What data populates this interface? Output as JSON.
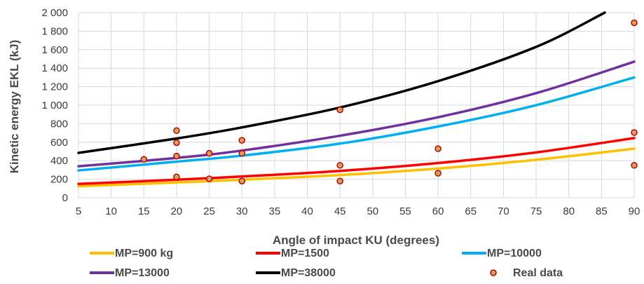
{
  "chart_data": {
    "type": "line",
    "xlabel": "Angle of impact KU (degrees)",
    "ylabel": "Kinetic energy EKL (kJ)",
    "xlim": [
      5,
      90
    ],
    "ylim": [
      0,
      2000
    ],
    "x_ticks": [
      "5",
      "10",
      "15",
      "20",
      "25",
      "30",
      "35",
      "40",
      "45",
      "50",
      "55",
      "60",
      "65",
      "70",
      "75",
      "80",
      "85",
      "90"
    ],
    "y_ticks": [
      "0",
      "200",
      "400",
      "600",
      "800",
      "1 000",
      "1 200",
      "1 400",
      "1 600",
      "1 800",
      "2 000"
    ],
    "grid": true,
    "legend_position": "bottom",
    "series": [
      {
        "name": "MP=900 kg",
        "color": "#FFC000",
        "x": [
          5,
          20,
          30,
          45,
          60,
          75,
          90
        ],
        "y": [
          125,
          165,
          195,
          245,
          315,
          410,
          530
        ]
      },
      {
        "name": "MP=1500",
        "color": "#FF0000",
        "x": [
          5,
          20,
          30,
          45,
          60,
          75,
          90
        ],
        "y": [
          150,
          195,
          230,
          290,
          375,
          490,
          645
        ]
      },
      {
        "name": "MP=10000",
        "color": "#00B0F0",
        "x": [
          5,
          20,
          30,
          45,
          60,
          75,
          90
        ],
        "y": [
          295,
          390,
          455,
          585,
          770,
          1000,
          1300
        ]
      },
      {
        "name": "MP=13000",
        "color": "#7030A0",
        "x": [
          5,
          20,
          30,
          45,
          60,
          75,
          90
        ],
        "y": [
          340,
          430,
          510,
          670,
          870,
          1130,
          1470
        ]
      },
      {
        "name": "MP=38000",
        "color": "#000000",
        "x": [
          5,
          20,
          30,
          45,
          60,
          75,
          85.5
        ],
        "y": [
          485,
          640,
          760,
          975,
          1260,
          1630,
          2000
        ]
      }
    ],
    "scatter": {
      "name": "Real data",
      "fill": "#D6A15A",
      "stroke": "#C00000",
      "points": [
        [
          15,
          415
        ],
        [
          20,
          725
        ],
        [
          20,
          595
        ],
        [
          20,
          450
        ],
        [
          20,
          225
        ],
        [
          25,
          480
        ],
        [
          25,
          205
        ],
        [
          30,
          620
        ],
        [
          30,
          480
        ],
        [
          30,
          180
        ],
        [
          45,
          950
        ],
        [
          45,
          350
        ],
        [
          45,
          180
        ],
        [
          60,
          530
        ],
        [
          60,
          265
        ],
        [
          90,
          1890
        ],
        [
          90,
          705
        ],
        [
          90,
          350
        ]
      ]
    }
  }
}
